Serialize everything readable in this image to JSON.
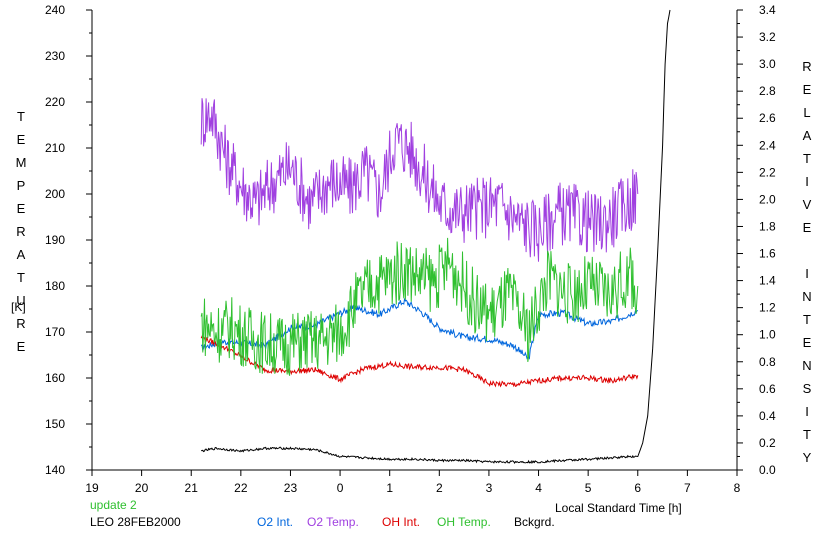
{
  "chart_data": {
    "type": "line",
    "left_axis_label": "TEMPERATURE",
    "left_axis_unit": "[K]",
    "right_axis_label": "RELATIVE INTENSITY",
    "xlabel": "Local Standard Time [h]",
    "x_ticks": [
      "19",
      "20",
      "21",
      "22",
      "23",
      "0",
      "1",
      "2",
      "3",
      "4",
      "5",
      "6",
      "7",
      "8"
    ],
    "x_range": [
      19,
      32
    ],
    "y_left_range": [
      140,
      240
    ],
    "y_left_ticks": [
      140,
      150,
      160,
      170,
      180,
      190,
      200,
      210,
      220,
      230,
      240
    ],
    "y_right_range": [
      0.0,
      3.4
    ],
    "y_right_ticks": [
      "0.0",
      "0.2",
      "0.4",
      "0.6",
      "0.8",
      "1.0",
      "1.2",
      "1.4",
      "1.6",
      "1.8",
      "2.0",
      "2.2",
      "2.4",
      "2.6",
      "2.8",
      "3.0",
      "3.2",
      "3.4"
    ],
    "legend_position": "bottom",
    "series": [
      {
        "name": "O2 Int.",
        "axis": "right",
        "color": "#0066dd",
        "x": [
          21.2,
          21.6,
          22.0,
          22.5,
          23.0,
          23.5,
          24.0,
          24.3,
          24.8,
          25.3,
          25.6,
          26.0,
          26.5,
          27.0,
          27.5,
          27.8,
          28.0,
          28.5,
          29.0,
          29.5,
          30.0
        ],
        "y": [
          0.9,
          0.95,
          0.94,
          0.92,
          1.05,
          1.07,
          1.16,
          1.2,
          1.15,
          1.25,
          1.18,
          1.05,
          0.98,
          0.97,
          0.92,
          0.82,
          1.15,
          1.16,
          1.08,
          1.1,
          1.18
        ]
      },
      {
        "name": "O2 Temp.",
        "axis": "left",
        "color": "#a040e0",
        "x": [
          21.2,
          21.4,
          21.7,
          22.0,
          22.3,
          22.6,
          23.0,
          23.4,
          23.8,
          24.2,
          24.5,
          24.8,
          25.1,
          25.4,
          25.7,
          26.0,
          26.4,
          26.8,
          27.2,
          27.6,
          28.0,
          28.4,
          28.8,
          29.2,
          29.6,
          30.0
        ],
        "y": [
          216,
          218,
          208,
          202,
          198,
          202,
          206,
          198,
          203,
          201,
          205,
          200,
          212,
          210,
          204,
          198,
          196,
          197,
          198,
          194,
          192,
          196,
          195,
          193,
          196,
          200
        ]
      },
      {
        "name": "OH Int.",
        "axis": "right",
        "color": "#dd0000",
        "x": [
          21.2,
          21.6,
          22.0,
          22.5,
          23.0,
          23.5,
          24.0,
          24.5,
          25.0,
          25.5,
          26.0,
          26.5,
          27.0,
          27.5,
          28.0,
          28.5,
          29.0,
          29.5,
          30.0
        ],
        "y": [
          0.98,
          0.92,
          0.84,
          0.74,
          0.73,
          0.74,
          0.67,
          0.75,
          0.78,
          0.76,
          0.76,
          0.74,
          0.64,
          0.63,
          0.66,
          0.68,
          0.68,
          0.66,
          0.7
        ]
      },
      {
        "name": "OH Temp.",
        "axis": "left",
        "color": "#30c030",
        "x": [
          21.2,
          21.5,
          21.8,
          22.1,
          22.4,
          22.8,
          23.2,
          23.6,
          24.0,
          24.3,
          24.6,
          25.0,
          25.3,
          25.6,
          25.9,
          26.2,
          26.5,
          26.8,
          27.1,
          27.4,
          27.8,
          28.2,
          28.6,
          29.0,
          29.4,
          29.8,
          30.0
        ],
        "y": [
          172,
          170,
          171,
          169,
          168,
          167,
          168,
          168,
          170,
          176,
          180,
          182,
          184,
          182,
          181,
          185,
          180,
          175,
          174,
          178,
          170,
          182,
          178,
          180,
          178,
          182,
          180
        ]
      },
      {
        "name": "Bckgrd.",
        "axis": "right",
        "color": "#000000",
        "x": [
          21.2,
          21.5,
          22.0,
          22.5,
          23.0,
          23.5,
          24.0,
          24.5,
          25.0,
          25.5,
          26.0,
          26.5,
          27.0,
          27.5,
          28.0,
          28.5,
          29.0,
          29.5,
          29.8,
          30.0,
          30.1,
          30.2,
          30.3,
          30.4,
          30.5,
          30.55,
          30.6,
          30.65
        ],
        "y": [
          0.14,
          0.16,
          0.14,
          0.16,
          0.16,
          0.15,
          0.1,
          0.09,
          0.08,
          0.08,
          0.07,
          0.07,
          0.06,
          0.06,
          0.06,
          0.07,
          0.08,
          0.09,
          0.1,
          0.1,
          0.2,
          0.4,
          0.9,
          1.6,
          2.4,
          3.0,
          3.3,
          3.4
        ]
      }
    ]
  },
  "legend": {
    "update_label": "update 2",
    "station_label": "LEO 28FEB2000",
    "o2_int": "O2 Int.",
    "o2_temp": "O2 Temp.",
    "oh_int": "OH Int.",
    "oh_temp": "OH Temp.",
    "bckgrd": "Bckgrd."
  },
  "colors": {
    "o2_int": "#0066dd",
    "o2_temp": "#a040e0",
    "oh_int": "#dd0000",
    "oh_temp": "#30c030",
    "bckgrd": "#000000",
    "update": "#30c030"
  }
}
